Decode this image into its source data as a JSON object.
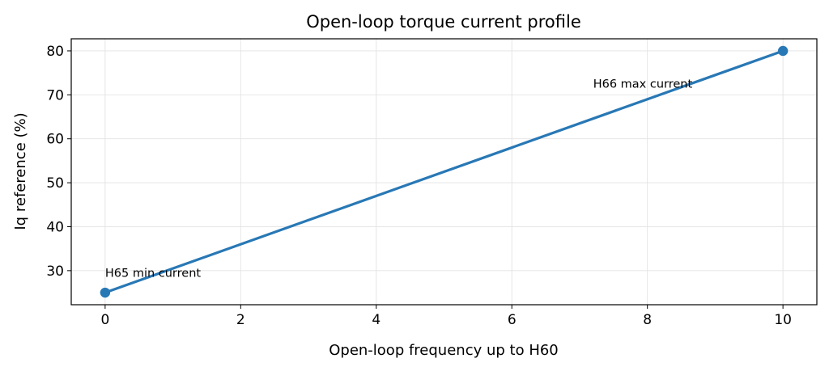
{
  "chart_data": {
    "type": "line",
    "title": "Open-loop torque current profile",
    "xlabel": "Open-loop frequency up to H60",
    "ylabel": "Iq reference (%)",
    "x": [
      0,
      10
    ],
    "series": [
      {
        "values": [
          25,
          80
        ],
        "color": "#2878b5"
      }
    ],
    "xlim": [
      -0.5,
      10.5
    ],
    "ylim": [
      22.25,
      82.75
    ],
    "xticks": [
      0,
      2,
      4,
      6,
      8,
      10
    ],
    "yticks": [
      30,
      40,
      50,
      60,
      70,
      80
    ],
    "grid": true,
    "legend": "none",
    "annotations": [
      {
        "text": "H65 min current",
        "x": 0,
        "y": 29.5
      },
      {
        "text": "H66 max current",
        "x": 7.2,
        "y": 72.5
      }
    ]
  }
}
